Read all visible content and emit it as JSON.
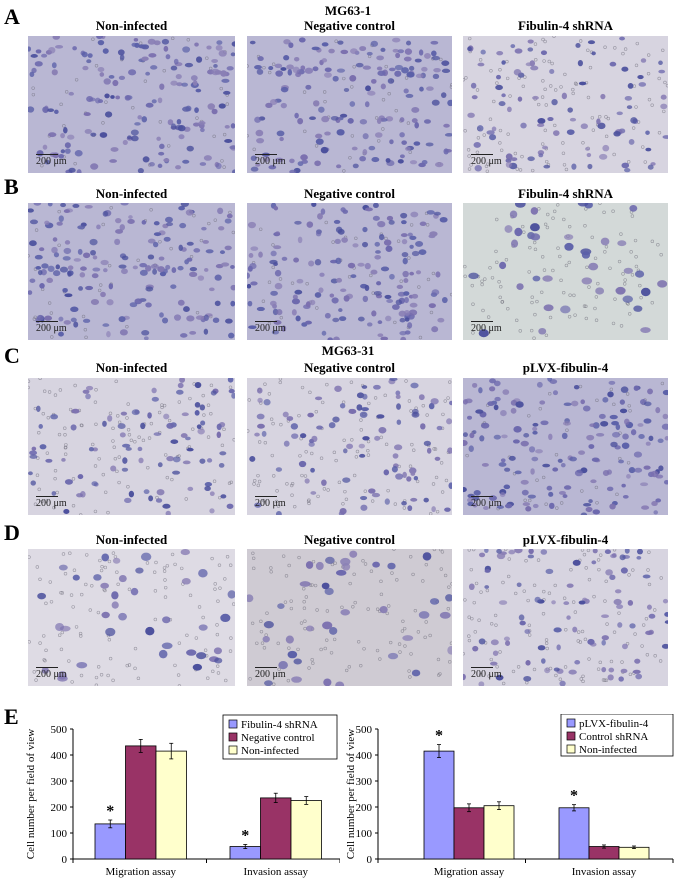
{
  "figure": {
    "rows": [
      {
        "letter": "A",
        "title": "MG63-1",
        "columns": [
          "Non-infected",
          "Negative control",
          "Fibulin-4 shRNA"
        ],
        "scale_bar": "200 μm",
        "densities": [
          "dense",
          "dense",
          "medium"
        ]
      },
      {
        "letter": "B",
        "title": "",
        "columns": [
          "Non-infected",
          "Negative control",
          "Fibulin-4 shRNA"
        ],
        "scale_bar": "200 μm",
        "densities": [
          "dense",
          "dense",
          "sparse"
        ]
      },
      {
        "letter": "C",
        "title": "MG63-31",
        "columns": [
          "Non-infected",
          "Negative control",
          "pLVX-fibulin-4"
        ],
        "scale_bar": "200 μm",
        "densities": [
          "medium",
          "medium",
          "dense"
        ]
      },
      {
        "letter": "D",
        "title": "",
        "columns": [
          "Non-infected",
          "Negative control",
          "pLVX-fibulin-4"
        ],
        "scale_bar": "200 μm",
        "densities": [
          "sparse",
          "sparse",
          "medium"
        ]
      }
    ],
    "chart_panel_letter": "E"
  },
  "colors": {
    "blue": "#9999FF",
    "red": "#993366",
    "yellow": "#FFFFCC",
    "stain_dense": "#5a5fa8",
    "background_light": "#e6e2ea"
  },
  "chart_data": [
    {
      "type": "bar",
      "title": "",
      "xlabel": "",
      "ylabel": "Cell number per field of view",
      "ylim": [
        0,
        500
      ],
      "yticks": [
        0,
        100,
        200,
        300,
        400,
        500
      ],
      "grid": false,
      "legend_position": "top-right",
      "categories": [
        "Migration assay",
        "Invasion assay"
      ],
      "series": [
        {
          "name": "Fibulin-4 shRNA",
          "color": "#9999FF",
          "values": [
            135,
            48
          ],
          "errors": [
            15,
            8
          ],
          "significant": [
            true,
            true
          ]
        },
        {
          "name": "Negative control",
          "color": "#993366",
          "values": [
            435,
            235
          ],
          "errors": [
            25,
            18
          ],
          "significant": [
            false,
            false
          ]
        },
        {
          "name": "Non-infected",
          "color": "#FFFFCC",
          "values": [
            415,
            225
          ],
          "errors": [
            30,
            15
          ],
          "significant": [
            false,
            false
          ]
        }
      ],
      "annotation": "*"
    },
    {
      "type": "bar",
      "title": "",
      "xlabel": "",
      "ylabel": "Cell number per field of view",
      "ylim": [
        0,
        500
      ],
      "yticks": [
        0,
        100,
        200,
        300,
        400,
        500
      ],
      "grid": false,
      "legend_position": "top-right",
      "categories": [
        "Migration assay",
        "Invasion assay"
      ],
      "series": [
        {
          "name": "pLVX-fibulin-4",
          "color": "#9999FF",
          "values": [
            415,
            197
          ],
          "errors": [
            25,
            12
          ],
          "significant": [
            true,
            true
          ]
        },
        {
          "name": "Control shRNA",
          "color": "#993366",
          "values": [
            197,
            48
          ],
          "errors": [
            15,
            6
          ],
          "significant": [
            false,
            false
          ]
        },
        {
          "name": "Non-infected",
          "color": "#FFFFCC",
          "values": [
            205,
            45
          ],
          "errors": [
            15,
            5
          ],
          "significant": [
            false,
            false
          ]
        }
      ],
      "annotation": "*"
    }
  ]
}
